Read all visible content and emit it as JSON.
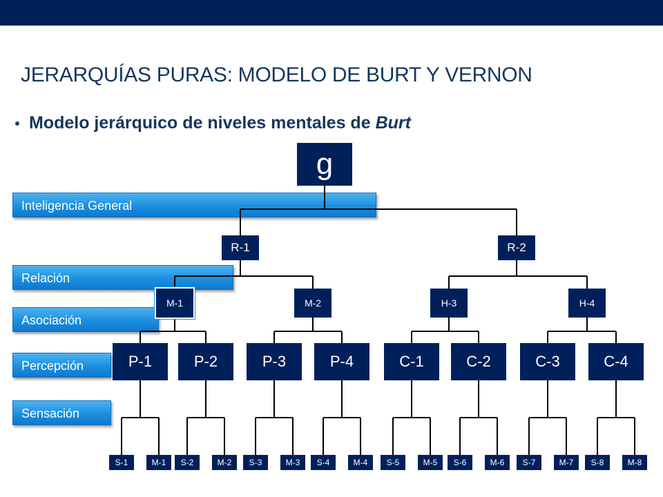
{
  "slide": {
    "title": "JERARQUÍAS PURAS: MODELO DE BURT Y VERNON",
    "bullet_bold": "Modelo jerárquico de niveles mentales de ",
    "bullet_italic": "Burt"
  },
  "levels": [
    "Inteligencia General",
    "Relación",
    "Asociación",
    "Percepción",
    "Sensación"
  ],
  "tree": {
    "root": "g",
    "level1": [
      "R-1",
      "R-2"
    ],
    "level2": [
      "M-1",
      "M-2",
      "H-3",
      "H-4"
    ],
    "level3": [
      "P-1",
      "P-2",
      "P-3",
      "P-4",
      "C-1",
      "C-2",
      "C-3",
      "C-4"
    ],
    "level4": [
      "S-1",
      "M-1",
      "S-2",
      "M-2",
      "S-3",
      "M-3",
      "S-4",
      "M-4",
      "S-5",
      "M-5",
      "S-6",
      "M-6",
      "S-7",
      "M-7",
      "S-8",
      "M-8"
    ]
  },
  "colors": {
    "header_bar": "#00205b",
    "node": "#00205b",
    "level_box": "#1a8fe0",
    "title": "#17365d"
  }
}
